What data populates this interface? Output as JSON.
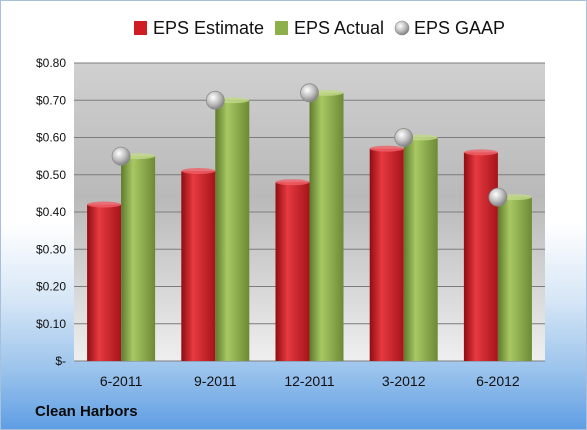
{
  "company_label": "Clean Harbors",
  "chart_data": {
    "type": "bar",
    "categories": [
      "6-2011",
      "9-2011",
      "12-2011",
      "3-2012",
      "6-2012"
    ],
    "series": [
      {
        "name": "EPS Estimate",
        "kind": "bar",
        "color": "#d01c24",
        "values": [
          0.42,
          0.51,
          0.48,
          0.57,
          0.56
        ]
      },
      {
        "name": "EPS Actual",
        "kind": "bar",
        "color": "#8db04a",
        "values": [
          0.55,
          0.7,
          0.72,
          0.6,
          0.44
        ]
      },
      {
        "name": "EPS GAAP",
        "kind": "marker",
        "color": "#b8b8b8",
        "values": [
          0.55,
          0.7,
          0.72,
          0.6,
          0.44
        ]
      }
    ],
    "ylim": [
      0,
      0.8
    ],
    "yticks": [
      0,
      0.1,
      0.2,
      0.3,
      0.4,
      0.5,
      0.6,
      0.7,
      0.8
    ],
    "ytick_labels": [
      "$-",
      "$0.10",
      "$0.20",
      "$0.30",
      "$0.40",
      "$0.50",
      "$0.60",
      "$0.70",
      "$0.80"
    ],
    "grid": true,
    "legend_position": "top"
  }
}
